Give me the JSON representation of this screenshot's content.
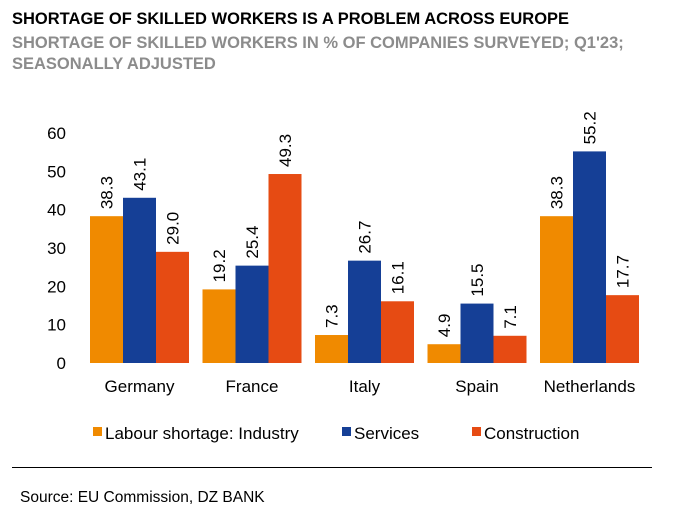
{
  "title": "SHORTAGE OF SKILLED WORKERS IS A PROBLEM ACROSS EUROPE",
  "subtitle": "SHORTAGE OF SKILLED WORKERS IN % OF COMPANIES SURVEYED; Q1'23; SEASONALLY ADJUSTED",
  "source": "Source: EU Commission, DZ BANK",
  "chart_data": {
    "type": "bar",
    "categories": [
      "Germany",
      "France",
      "Italy",
      "Spain",
      "Netherlands"
    ],
    "series": [
      {
        "name": "Labour shortage: Industry",
        "color": "#f08a00",
        "values": [
          38.3,
          19.2,
          7.3,
          4.9,
          38.3
        ],
        "labels": [
          "38.3",
          "19.2",
          "7.3",
          "4.9",
          "38.3"
        ]
      },
      {
        "name": "Services",
        "color": "#153f96",
        "values": [
          43.1,
          25.4,
          26.7,
          15.5,
          55.2
        ],
        "labels": [
          "43.1",
          "25.4",
          "26.7",
          "15.5",
          "55.2"
        ]
      },
      {
        "name": "Construction",
        "color": "#e64b13",
        "values": [
          29.0,
          49.3,
          16.1,
          7.1,
          17.7
        ],
        "labels": [
          "29.0",
          "49.3",
          "16.1",
          "7.1",
          "17.7"
        ]
      }
    ],
    "ylim": [
      0,
      60
    ],
    "yticks": [
      "0",
      "10",
      "20",
      "30",
      "40",
      "50",
      "60"
    ],
    "grid": false,
    "legend_position": "bottom"
  }
}
